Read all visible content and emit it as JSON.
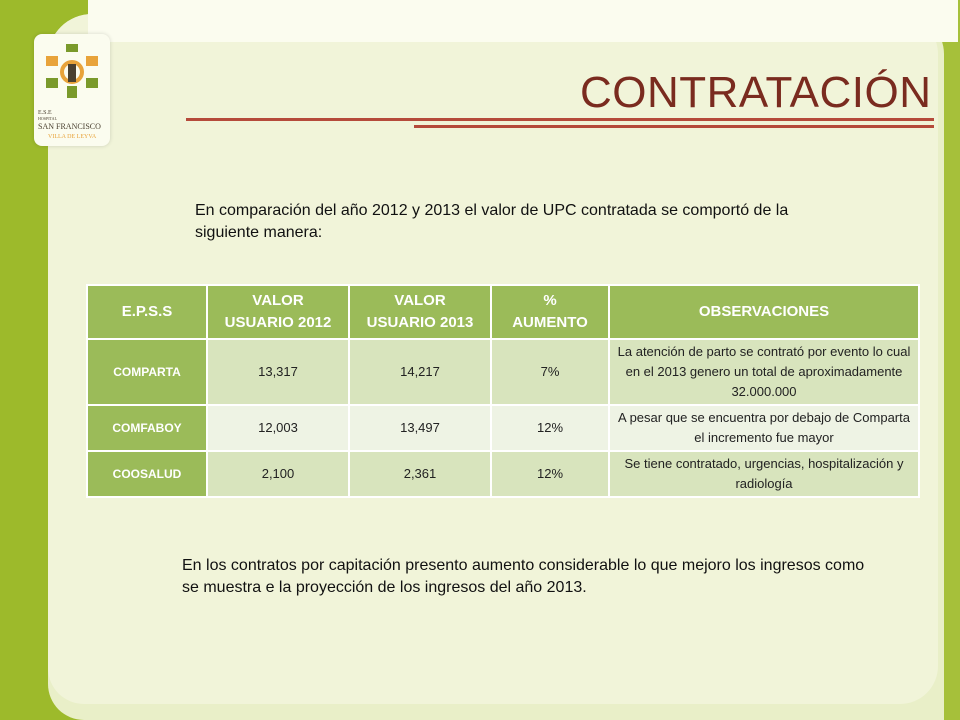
{
  "header": {
    "title": "CONTRATACIÓN"
  },
  "logo": {
    "line1": "E.S.E",
    "line2": "HOSPITAL",
    "line3": "SAN FRANCISCO",
    "line4": "VILLA DE LEYVA",
    "colors": {
      "orange": "#e8a33a",
      "green": "#7a9a2b",
      "dark": "#4a4030"
    }
  },
  "intro_text": "En comparación del año 2012 y 2013 el valor de UPC contratada se comportó de la siguiente manera:",
  "table": {
    "headers": {
      "eps": "E.P.S.S",
      "v2012_a": "VALOR",
      "v2012_b": "USUARIO 2012",
      "v2013_a": "VALOR",
      "v2013_b": "USUARIO 2013",
      "pct_a": "%",
      "pct_b": "AUMENTO",
      "obs": "OBSERVACIONES"
    },
    "rows": [
      {
        "eps": "COMPARTA",
        "v2012": "13,317",
        "v2013": "14,217",
        "pct": "7%",
        "obs": "La atención de parto se contrató por evento lo cual en el 2013 genero un total de aproximadamente 32.000.000"
      },
      {
        "eps": "COMFABOY",
        "v2012": "12,003",
        "v2013": "13,497",
        "pct": "12%",
        "obs": "A pesar que se encuentra por debajo de Comparta el incremento fue mayor"
      },
      {
        "eps": "COOSALUD",
        "v2012": "2,100",
        "v2013": "2,361",
        "pct": "12%",
        "obs": "Se tiene contratado, urgencias, hospitalización y radiología"
      }
    ]
  },
  "outro_text": "En los contratos por capitación presento aumento considerable lo que mejoro los ingresos como se muestra e la proyección de los ingresos del año 2013.",
  "colors": {
    "title": "#7a2b1f",
    "header_green": "#9bbb59",
    "rule": "#b54a3a"
  }
}
